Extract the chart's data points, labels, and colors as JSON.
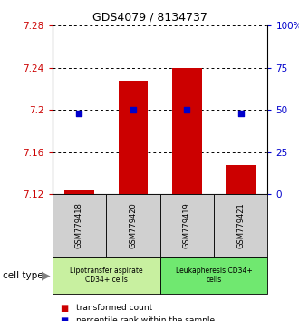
{
  "title": "GDS4079 / 8134737",
  "samples": [
    "GSM779418",
    "GSM779420",
    "GSM779419",
    "GSM779421"
  ],
  "transformed_counts": [
    7.124,
    7.228,
    7.24,
    7.148
  ],
  "percentile_ranks": [
    48,
    50,
    50,
    48
  ],
  "ymin": 7.12,
  "ymax": 7.28,
  "yticks": [
    7.12,
    7.16,
    7.2,
    7.24,
    7.28
  ],
  "ytick_labels": [
    "7.12",
    "7.16",
    "7.2",
    "7.24",
    "7.28"
  ],
  "y2ticks": [
    0,
    25,
    50,
    75,
    100
  ],
  "y2tick_labels": [
    "0",
    "25",
    "50",
    "75",
    "100%"
  ],
  "bar_color": "#cc0000",
  "dot_color": "#0000cc",
  "bar_width": 0.55,
  "groups": [
    {
      "label": "Lipotransfer aspirate\nCD34+ cells",
      "samples": [
        0,
        1
      ],
      "color": "#c8f0a0"
    },
    {
      "label": "Leukapheresis CD34+\ncells",
      "samples": [
        2,
        3
      ],
      "color": "#70e870"
    }
  ],
  "cell_type_label": "cell type",
  "legend_red": "transformed count",
  "legend_blue": "percentile rank within the sample",
  "left_axis_color": "#cc0000",
  "right_axis_color": "#0000cc",
  "sample_box_color": "#d0d0d0",
  "fig_width": 3.3,
  "fig_height": 3.54,
  "dpi": 100
}
